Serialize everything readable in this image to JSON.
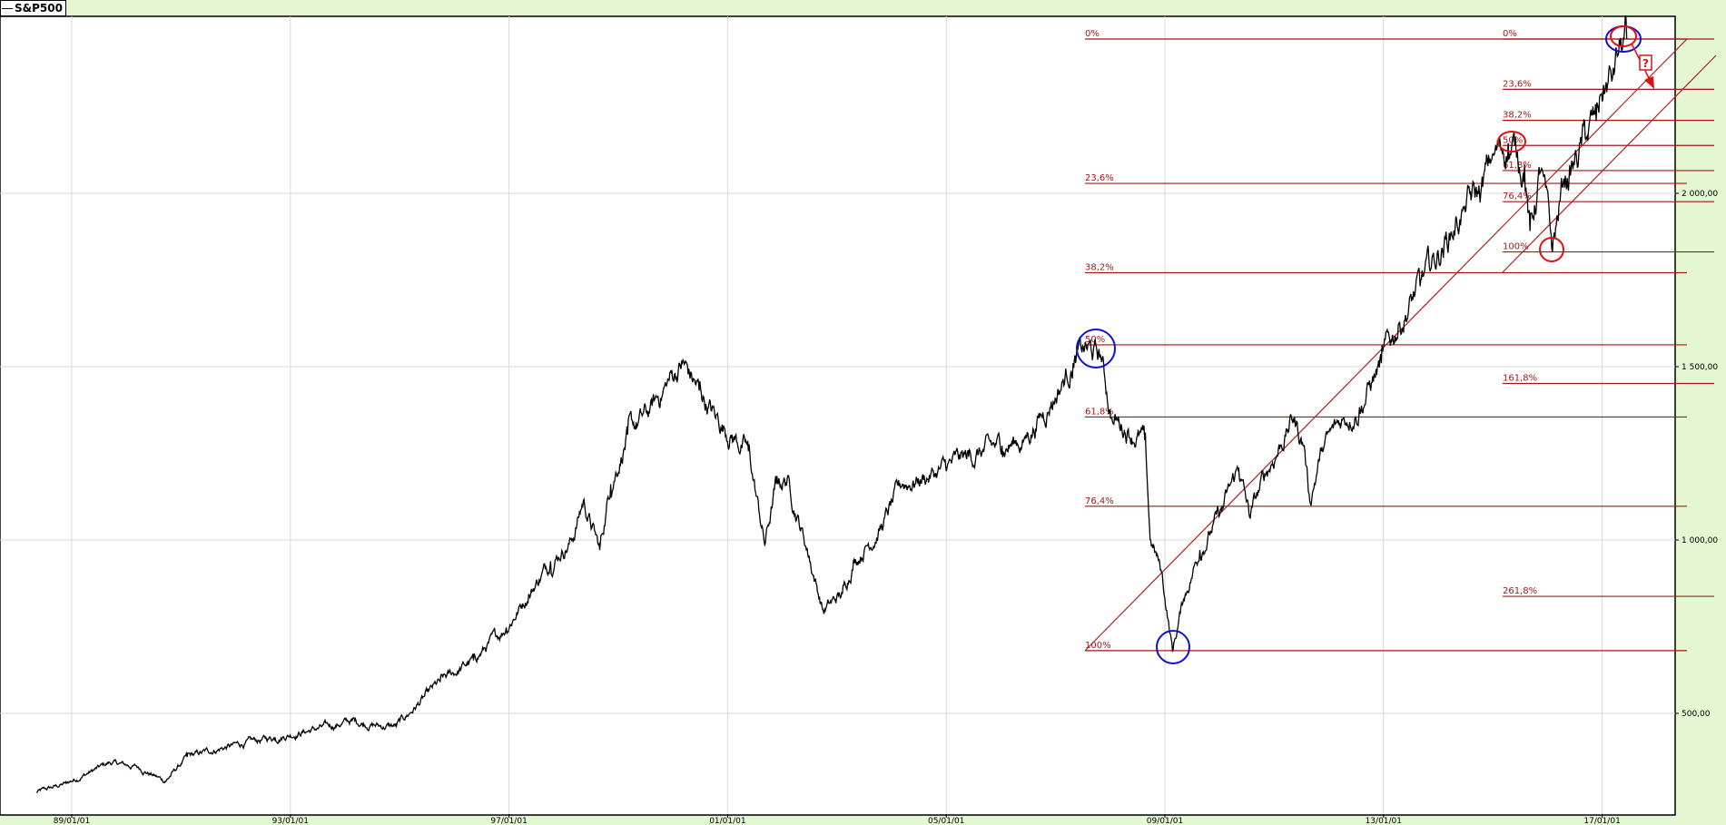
{
  "legend": {
    "label": "S&P500"
  },
  "colors": {
    "price": "#000000",
    "fib": "#a01818",
    "circle_blue": "#1010d0",
    "circle_red": "#e01010",
    "grid": "#d8d8d8",
    "background": "#e4f7d2"
  },
  "chart_data": {
    "type": "line",
    "title": "S&P500",
    "xlabel": "",
    "ylabel": "",
    "xlim": [
      1988.2,
      2019.6
    ],
    "ylim": [
      260,
      2535
    ],
    "grid": true,
    "legend_position": "top-left",
    "x_ticks": [
      {
        "label": "89/01/01",
        "year": 1989
      },
      {
        "label": "93/01/01",
        "year": 1993
      },
      {
        "label": "97/01/01",
        "year": 1997
      },
      {
        "label": "01/01/01",
        "year": 2001
      },
      {
        "label": "05/01/01",
        "year": 2005
      },
      {
        "label": "09/01/01",
        "year": 2009
      },
      {
        "label": "13/01/01",
        "year": 2013
      },
      {
        "label": "17/01/01",
        "year": 2017
      }
    ],
    "y_ticks": [
      {
        "label": "500,00",
        "value": 500
      },
      {
        "label": "1 000,00",
        "value": 1000
      },
      {
        "label": "1 500,00",
        "value": 1500
      },
      {
        "label": "2 000,00",
        "value": 2000
      }
    ],
    "series": [
      {
        "name": "S&P500",
        "points": [
          [
            1988.35,
            272
          ],
          [
            1988.9,
            298
          ],
          [
            1989.7,
            358
          ],
          [
            1990.21,
            345
          ],
          [
            1990.71,
            304
          ],
          [
            1991.11,
            374
          ],
          [
            1991.72,
            399
          ],
          [
            1992.72,
            431
          ],
          [
            1993.73,
            463
          ],
          [
            1994.13,
            479
          ],
          [
            1994.64,
            463
          ],
          [
            1994.94,
            463
          ],
          [
            1995.74,
            590
          ],
          [
            1996.35,
            653
          ],
          [
            1996.95,
            748
          ],
          [
            1997.36,
            844
          ],
          [
            1997.76,
            939
          ],
          [
            1998.16,
            1002
          ],
          [
            1998.36,
            1113
          ],
          [
            1998.66,
            971
          ],
          [
            1998.86,
            1161
          ],
          [
            1999.17,
            1304
          ],
          [
            1999.57,
            1367
          ],
          [
            1999.87,
            1447
          ],
          [
            2000.17,
            1510
          ],
          [
            2000.48,
            1431
          ],
          [
            2000.78,
            1351
          ],
          [
            2001.08,
            1304
          ],
          [
            2001.38,
            1256
          ],
          [
            2001.68,
            986
          ],
          [
            2001.89,
            1161
          ],
          [
            2002.09,
            1177
          ],
          [
            2002.49,
            955
          ],
          [
            2002.75,
            796
          ],
          [
            2003.1,
            844
          ],
          [
            2003.3,
            939
          ],
          [
            2003.8,
            1034
          ],
          [
            2004.2,
            1161
          ],
          [
            2004.81,
            1193
          ],
          [
            2005.41,
            1240
          ],
          [
            2006.02,
            1272
          ],
          [
            2006.42,
            1288
          ],
          [
            2006.92,
            1399
          ],
          [
            2007.32,
            1510
          ],
          [
            2007.53,
            1550
          ],
          [
            2007.83,
            1526
          ],
          [
            2008.03,
            1351
          ],
          [
            2008.33,
            1320
          ],
          [
            2008.63,
            1288
          ],
          [
            2008.73,
            1002
          ],
          [
            2008.94,
            907
          ],
          [
            2009.14,
            681
          ],
          [
            2009.34,
            828
          ],
          [
            2009.64,
            971
          ],
          [
            2010.04,
            1082
          ],
          [
            2010.35,
            1209
          ],
          [
            2010.55,
            1066
          ],
          [
            2010.85,
            1193
          ],
          [
            2011.35,
            1351
          ],
          [
            2011.55,
            1272
          ],
          [
            2011.65,
            1113
          ],
          [
            2011.86,
            1256
          ],
          [
            2012.26,
            1351
          ],
          [
            2012.56,
            1383
          ],
          [
            2012.96,
            1510
          ],
          [
            2013.27,
            1621
          ],
          [
            2013.67,
            1732
          ],
          [
            2014.07,
            1843
          ],
          [
            2014.47,
            1955
          ],
          [
            2014.78,
            2002
          ],
          [
            2014.98,
            2097
          ],
          [
            2015.28,
            2145
          ],
          [
            2015.58,
            2082
          ],
          [
            2015.68,
            1891
          ],
          [
            2015.88,
            2066
          ],
          [
            2016.09,
            1831
          ],
          [
            2016.29,
            2034
          ],
          [
            2016.49,
            2082
          ],
          [
            2016.69,
            2161
          ],
          [
            2016.89,
            2208
          ],
          [
            2016.99,
            2288
          ],
          [
            2017.19,
            2335
          ],
          [
            2017.29,
            2399
          ],
          [
            2017.45,
            2445
          ]
        ]
      }
    ],
    "fibonacci": [
      {
        "name": "retracement-2007-2017",
        "high": 2445,
        "low": 681,
        "levels": [
          {
            "pct": 0,
            "label": "0%"
          },
          {
            "pct": 0.236,
            "label": "23,6%"
          },
          {
            "pct": 0.382,
            "label": "38,2%"
          },
          {
            "pct": 0.5,
            "label": "50%"
          },
          {
            "pct": 0.618,
            "label": "61,8%"
          },
          {
            "pct": 0.764,
            "label": "76,4%"
          },
          {
            "pct": 1,
            "label": "100%"
          }
        ]
      },
      {
        "name": "retracement-2016-2017",
        "high": 2445,
        "low": 1831,
        "levels": [
          {
            "pct": 0,
            "label": "0%"
          },
          {
            "pct": 0.236,
            "label": "23,6%"
          },
          {
            "pct": 0.382,
            "label": "38,2%"
          },
          {
            "pct": 0.5,
            "label": "50%"
          },
          {
            "pct": 0.618,
            "label": "61,8%"
          },
          {
            "pct": 0.764,
            "label": "76,4%"
          },
          {
            "pct": 1,
            "label": "100%"
          },
          {
            "pct": 1.618,
            "label": "161,8%"
          },
          {
            "pct": 2.618,
            "label": "261,8%"
          }
        ]
      }
    ],
    "annotations": {
      "question_mark": "?"
    }
  }
}
